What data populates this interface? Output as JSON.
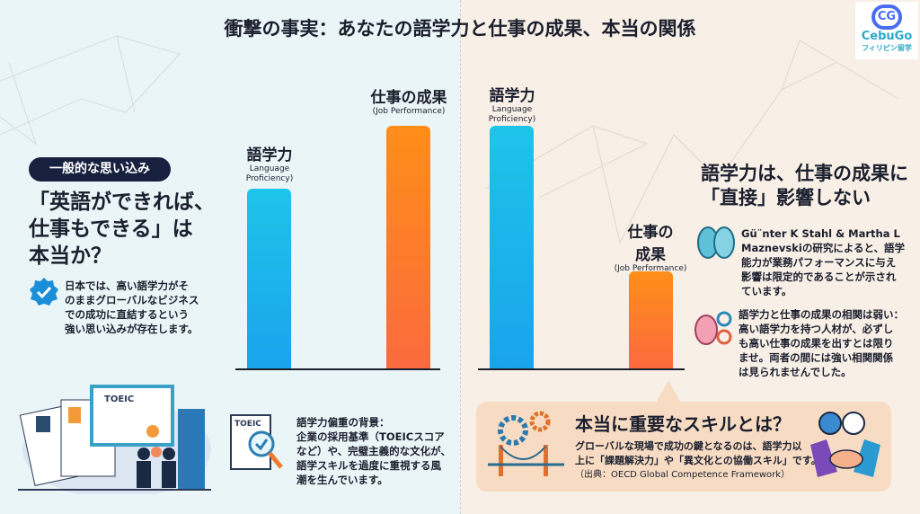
{
  "title": "衝撃の事実：あなたの語学力と仕事の成果、本当の関係",
  "logo": {
    "mark": "CG",
    "brand": "CebuGo",
    "sub": "フィリピン留学"
  },
  "left": {
    "badge": "一般的な思い込み",
    "heading": [
      "「英語ができれば、",
      "仕事もできる」は",
      "本当か？"
    ],
    "point": [
      "日本では、高い語学力がそ",
      "のままグローバルなビジネス",
      "での成功に直結するという",
      "強い思い込みが存在します。"
    ],
    "chart": {
      "bars": [
        {
          "label": "語学力",
          "sublabel": [
            "Language",
            "Proficiency)"
          ],
          "level": 0.74,
          "color": "#1ab4ec"
        },
        {
          "label": "仕事の成果",
          "sublabel": [
            "(Job Performance)"
          ],
          "level": 1.0,
          "color": "#ff7f2a"
        }
      ]
    },
    "background_note": {
      "toeic_label": "TOEIC",
      "lines": [
        "語学力偏重の背景：",
        "企業の採用基準（TOEICスコア",
        "など）や、完璧主義的な文化が、",
        "語学スキルを過度に重視する風",
        "潮を生んでいます。"
      ]
    },
    "illustration_label": "TOEIC"
  },
  "right": {
    "chart": {
      "bars": [
        {
          "label": "語学力",
          "sublabel": [
            "Language",
            "Proficiency)"
          ],
          "level": 1.0,
          "color": "#1ab4ec"
        },
        {
          "label": "仕事の\n成果",
          "label_lines": [
            "仕事の",
            "成果"
          ],
          "sublabel": [
            "(Job Performance)"
          ],
          "level": 0.4,
          "color": "#ff7f2a"
        }
      ]
    },
    "heading": [
      "語学力は、仕事の成果に",
      "「直接」影響しない"
    ],
    "point1": [
      "Gü¨nter K Stahl & Martha L",
      "Maznevskiの研究によると、語学",
      "能力が業務パフォーマンスに与え",
      "影響は限定的であることが示され",
      "ています。"
    ],
    "point2": [
      "語学力と仕事の成果の相関は弱い：",
      "高い語学力を持つ人材が、必ずし",
      "も高い仕事の成果を出すとは限り",
      "ませ。両者の間には強い相関関係",
      "は見られませんでした。"
    ],
    "skills": {
      "title": "本当に重要なスキルとは？",
      "body": [
        "グローバルな現場で成功の鍵となるのは、語学力以",
        "上に「課題解決力」や「異文化との協働スキル」です。"
      ],
      "source": "（出典：OECD Global Competence Framework）"
    }
  }
}
